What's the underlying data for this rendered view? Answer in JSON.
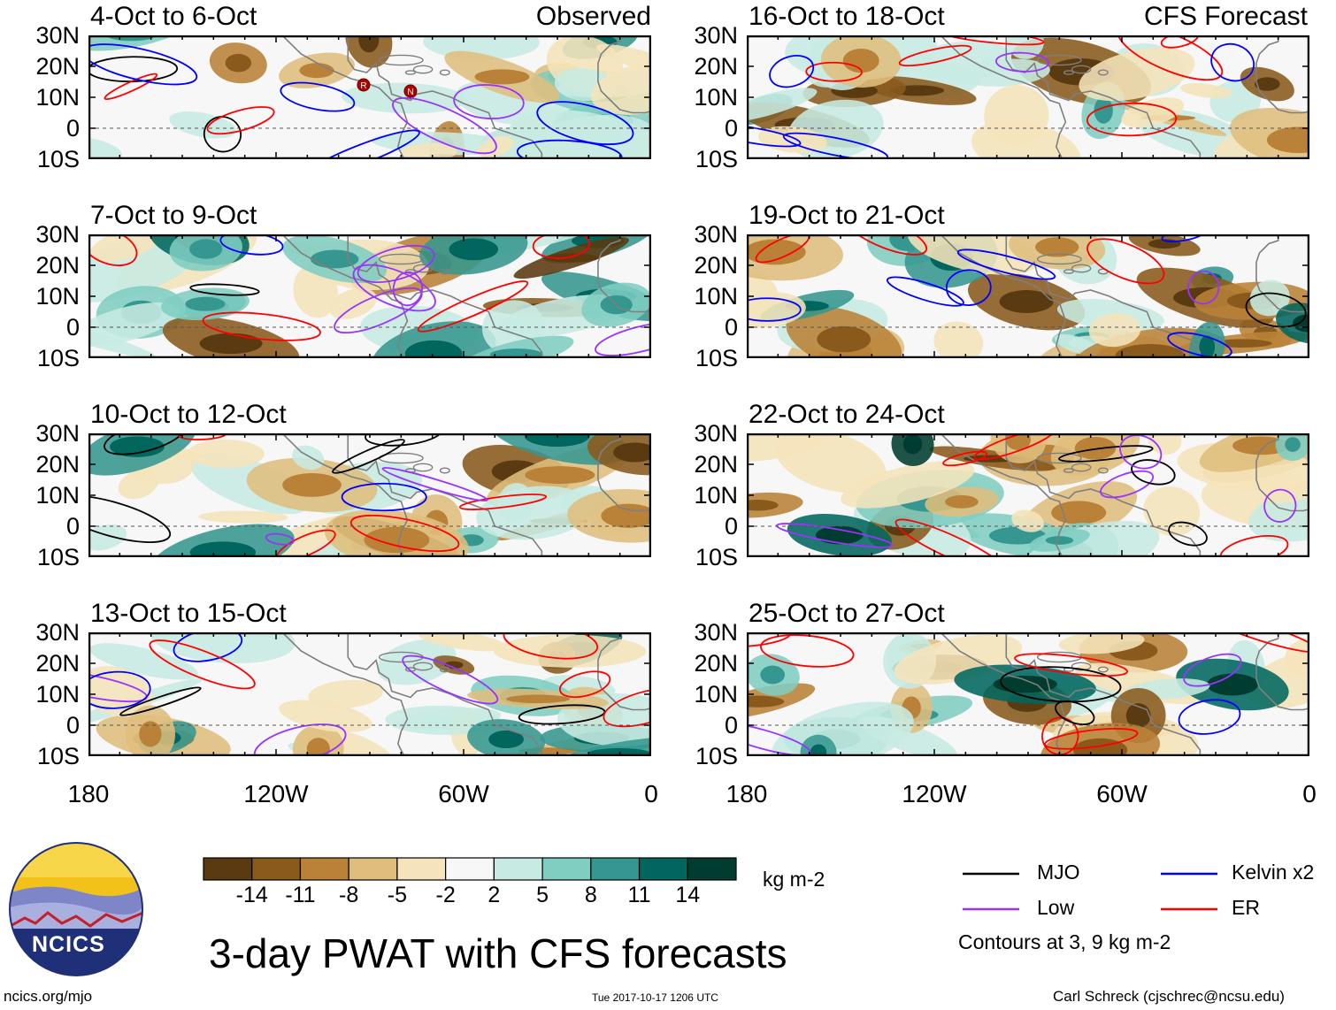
{
  "page": {
    "main_title": "3-day PWAT with CFS forecasts",
    "units": "kg m-2",
    "left_header": "Observed",
    "right_header": "CFS Forecast",
    "footer_left": "ncics.org/mjo",
    "footer_center": "Tue 2017-10-17 1206 UTC",
    "footer_right": "Carl Schreck (cjschrec@ncsu.edu)",
    "logo_text": "NCICS",
    "contour_note": "Contours at 3, 9 kg m-2"
  },
  "chart_data": {
    "type": "heatmap",
    "title": "3-day PWAT with CFS forecasts",
    "variable": "Precipitable water anomaly",
    "units": "kg m-2",
    "lon_ticks": [
      "180",
      "120W",
      "60W",
      "0"
    ],
    "lat_ticks": [
      "30N",
      "20N",
      "10N",
      "0",
      "10S"
    ],
    "lon_range": [
      -180,
      0
    ],
    "lat_range": [
      -10,
      30
    ],
    "colorbar": {
      "ticks": [
        "-14",
        "-11",
        "-8",
        "-5",
        "-2",
        "2",
        "5",
        "8",
        "11",
        "14"
      ],
      "colors": [
        "#5a3a10",
        "#8a5a1c",
        "#b98238",
        "#dfbe7d",
        "#f5e4bb",
        "#f7f7f7",
        "#c7ebe3",
        "#80cdc1",
        "#35978f",
        "#01665e",
        "#003c30"
      ]
    },
    "legend": [
      {
        "label": "MJO",
        "color": "#000000"
      },
      {
        "label": "Kelvin x2",
        "color": "#0000ff"
      },
      {
        "label": "Low",
        "color": "#9933ff"
      },
      {
        "label": "ER",
        "color": "#ff0000"
      }
    ],
    "panels": [
      {
        "period": "4-Oct to 6-Oct",
        "source": "Observed"
      },
      {
        "period": "7-Oct to 9-Oct",
        "source": "Observed"
      },
      {
        "period": "10-Oct to 12-Oct",
        "source": "Observed"
      },
      {
        "period": "13-Oct to 15-Oct",
        "source": "Observed"
      },
      {
        "period": "16-Oct to 18-Oct",
        "source": "CFS Forecast"
      },
      {
        "period": "19-Oct to 21-Oct",
        "source": "CFS Forecast"
      },
      {
        "period": "22-Oct to 24-Oct",
        "source": "CFS Forecast"
      },
      {
        "period": "25-Oct to 27-Oct",
        "source": "CFS Forecast"
      }
    ],
    "storm_markers": [
      {
        "panel": 0,
        "symbol": "R"
      },
      {
        "panel": 0,
        "symbol": "N"
      }
    ]
  }
}
